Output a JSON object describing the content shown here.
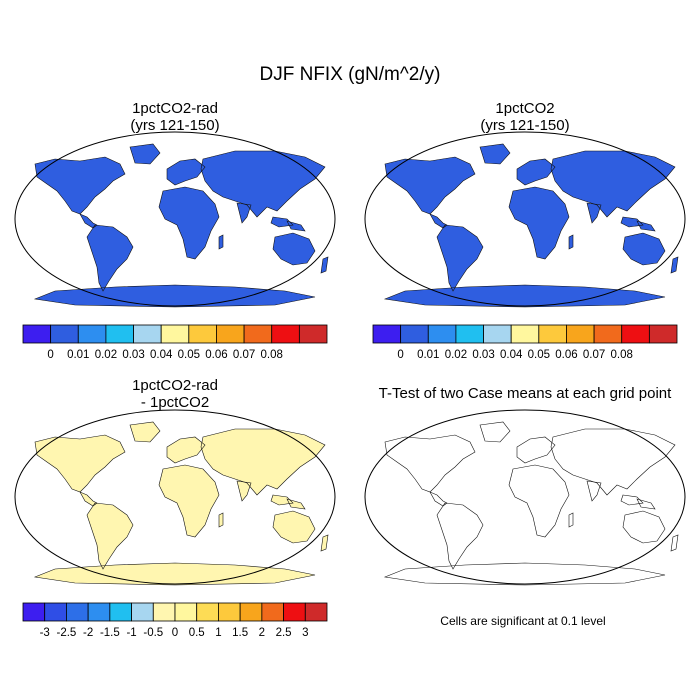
{
  "title": "DJF NFIX (gN/m^2/y)",
  "panels": {
    "top_left": {
      "title_line1": "1pctCO2-rad",
      "title_line2": "(yrs 121-150)"
    },
    "top_right": {
      "title_line1": "1pctCO2",
      "title_line2": "(yrs 121-150)"
    },
    "bottom_left": {
      "title_line1": "1pctCO2-rad",
      "title_line2": "- 1pctCO2"
    },
    "bottom_right": {
      "title_line1": "T-Test of two Case means at each grid point",
      "note": "Cells are significant at 0.1 level"
    }
  },
  "colorbars": {
    "abs": {
      "labels": [
        "0",
        "0.01",
        "0.02",
        "0.03",
        "0.04",
        "0.05",
        "0.06",
        "0.07",
        "0.08"
      ],
      "colors": [
        "#3d1ef0",
        "#2f5ee0",
        "#2d8ef0",
        "#20bff0",
        "#a7d6f0",
        "#fff79e",
        "#fdc93c",
        "#f8a51c",
        "#f16a1c",
        "#ee0f12",
        "#cf2a2a"
      ]
    },
    "diff": {
      "labels": [
        "-3",
        "-2.5",
        "-2",
        "-1.5",
        "-1",
        "-0.5",
        "0",
        "0.5",
        "1",
        "1.5",
        "2",
        "2.5",
        "3"
      ],
      "colors": [
        "#3d1ef0",
        "#2f4ee6",
        "#2d6fe8",
        "#2d8ef0",
        "#20bff0",
        "#a7d6f0",
        "#fff6b0",
        "#fff79e",
        "#fddc55",
        "#fdc93c",
        "#f8a51c",
        "#f16a1c",
        "#ee0f12",
        "#cf2a2a"
      ]
    }
  },
  "map_colors": {
    "land_low": "#2f5ee0",
    "land_high": "#cf2a2a",
    "diff_base": "#fff6b0",
    "diff_light": "#a7d6f0",
    "diff_dark": "#3d1ef0",
    "significant": "#ee0f12"
  }
}
